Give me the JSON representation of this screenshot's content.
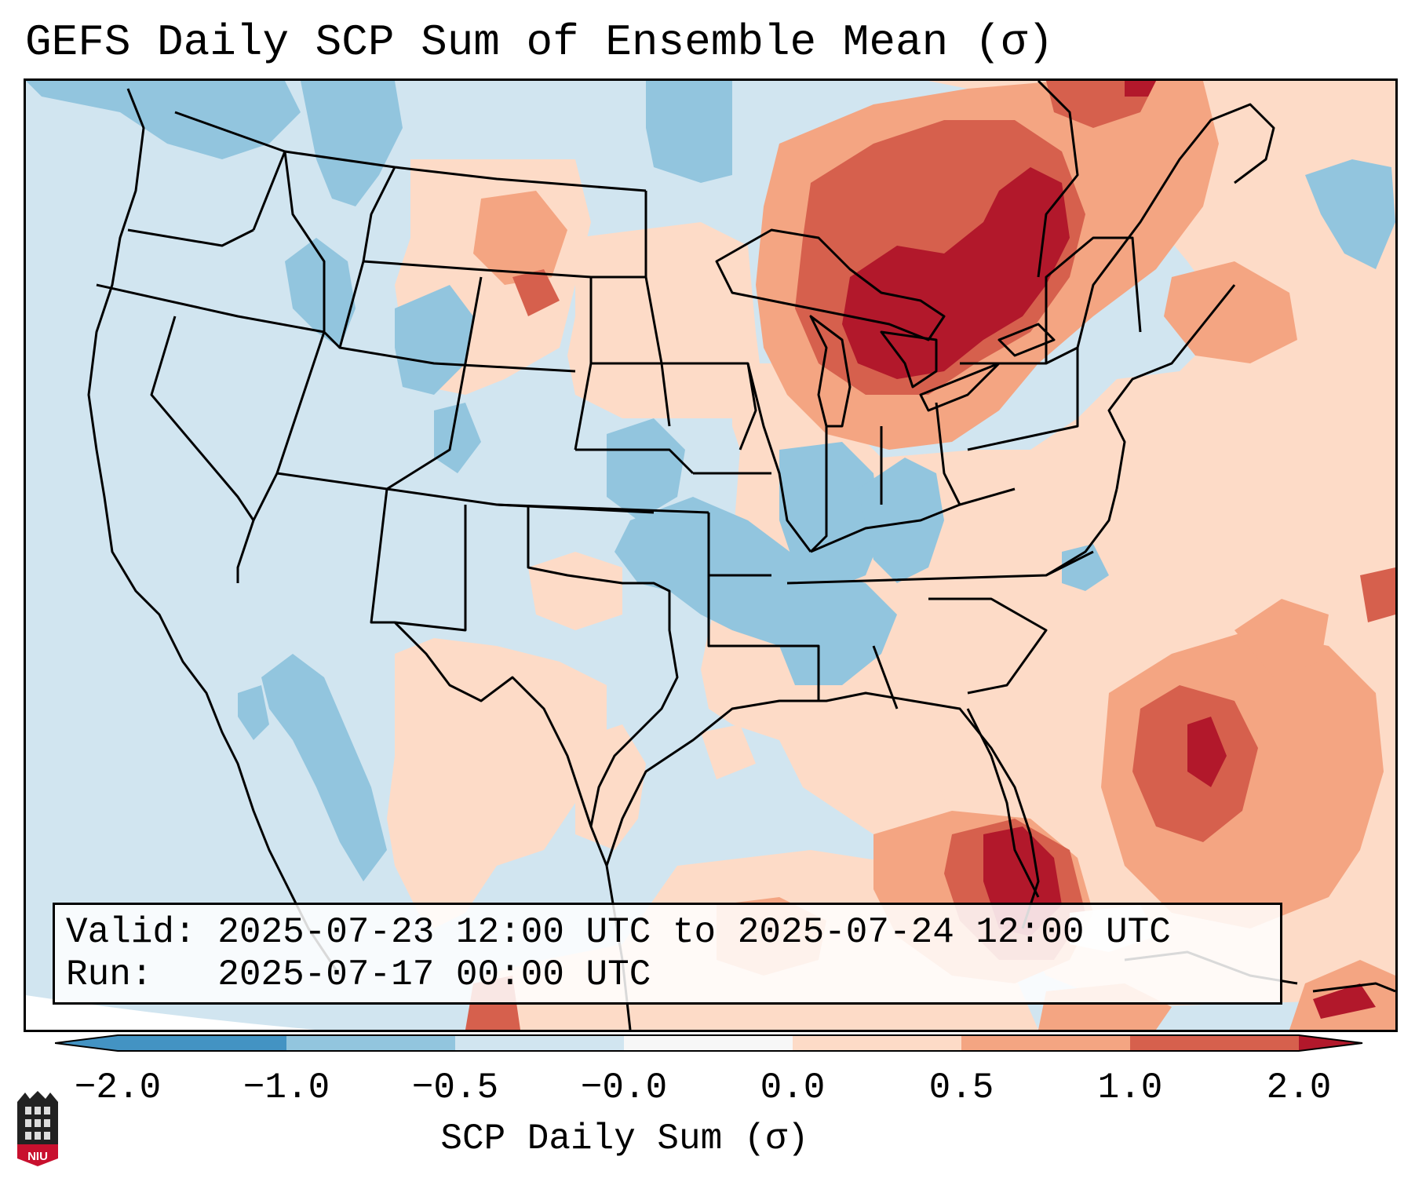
{
  "title": "GEFS Daily SCP Sum of Ensemble Mean (σ)",
  "valid_label": "Valid:",
  "valid_range": "2025-07-23 12:00 UTC to 2025-07-24 12:00 UTC",
  "run_label": "Run:",
  "run_time": "2025-07-17 00:00 UTC",
  "colorbar": {
    "label": "SCP Daily Sum (σ)",
    "ticks": [
      "−2.0",
      "−1.0",
      "−0.5",
      "−0.0",
      "0.0",
      "0.5",
      "1.0",
      "2.0"
    ],
    "colors": [
      "#4393c3",
      "#92c5de",
      "#d1e5f0",
      "#f7f7f7",
      "#fddbc7",
      "#f4a582",
      "#d6604d",
      "#b2182b"
    ]
  },
  "logo": {
    "text": "NIU",
    "color": "#c8102e"
  }
}
